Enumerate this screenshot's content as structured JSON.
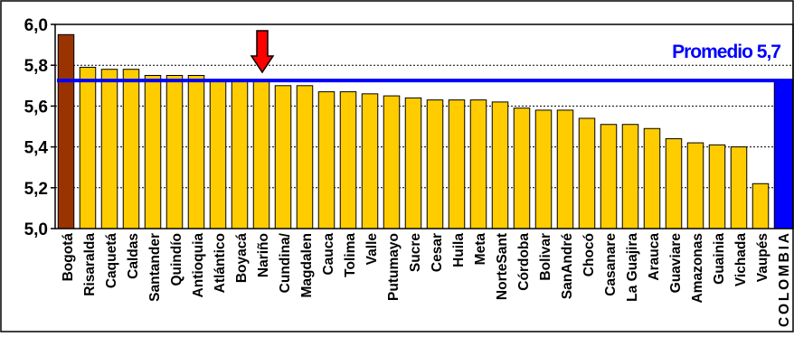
{
  "chart_data": {
    "type": "bar",
    "title": "",
    "xlabel": "",
    "ylabel": "",
    "ylim": [
      5.0,
      6.0
    ],
    "yticks": [
      5.0,
      5.2,
      5.4,
      5.6,
      5.8,
      6.0
    ],
    "ytick_labels": [
      "5,0",
      "5,2",
      "5,4",
      "5,6",
      "5,8",
      "6,0"
    ],
    "grid": "horizontal-dashed",
    "categories": [
      "Bogotá",
      "Risaralda",
      "Caquetá",
      "Caldas",
      "Santander",
      "Quindío",
      "Antioquia",
      "Atlántico",
      "Boyacá",
      "Nariño",
      "Cundina/",
      "Magdalen",
      "Cauca",
      "Tolima",
      "Valle",
      "Putumayo",
      "Sucre",
      "Cesar",
      "Huila",
      "Meta",
      "NorteSant",
      "Córdoba",
      "Bolivar",
      "SanAndré",
      "Chocó",
      "Casanare",
      "La Guajira",
      "Arauca",
      "Guaviare",
      "Amazonas",
      "Guainia",
      "Vichada",
      "Vaupés",
      "COLOMBIA"
    ],
    "values": [
      5.95,
      5.79,
      5.78,
      5.78,
      5.75,
      5.75,
      5.75,
      5.73,
      5.72,
      5.72,
      5.7,
      5.7,
      5.67,
      5.67,
      5.66,
      5.65,
      5.64,
      5.63,
      5.63,
      5.63,
      5.62,
      5.59,
      5.58,
      5.58,
      5.54,
      5.51,
      5.51,
      5.49,
      5.44,
      5.42,
      5.41,
      5.4,
      5.22,
      5.73
    ],
    "average": {
      "label": "Promedio 5,7",
      "value": 5.725
    },
    "highlight_category": "Nariño",
    "colors": {
      "bar_default": "#FFCC00",
      "bar_first": "#993300",
      "bar_national": "#0000FF",
      "average_line": "#0000FF",
      "average_label": "#0000FF",
      "marker_arrow": "#FF0000"
    }
  }
}
